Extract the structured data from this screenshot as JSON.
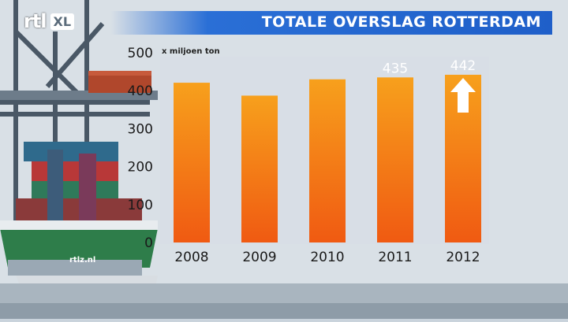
{
  "header": {
    "title": "TOTALE OVERSLAG ROTTERDAM",
    "logo_text": "rtl",
    "logo_badge": "XL"
  },
  "background": {
    "ship_text": "rtlz.nl"
  },
  "colors": {
    "title_bar": "#1f5fc9",
    "bar_top": "#f7a01c",
    "bar_bottom": "#f05a12",
    "arrow": "#ffffff"
  },
  "chart_data": {
    "type": "bar",
    "title": "TOTALE OVERSLAG ROTTERDAM",
    "unit_label": "x miljoen ton",
    "categories": [
      "2008",
      "2009",
      "2010",
      "2011",
      "2012"
    ],
    "values": [
      421,
      387,
      430,
      435,
      442
    ],
    "data_labels": [
      "",
      "",
      "",
      "435",
      "442"
    ],
    "ylim": [
      0,
      500
    ],
    "yticks": [
      0,
      100,
      200,
      300,
      400,
      500
    ],
    "grid": false,
    "annotations": [
      {
        "type": "up-arrow",
        "category": "2012"
      }
    ]
  }
}
